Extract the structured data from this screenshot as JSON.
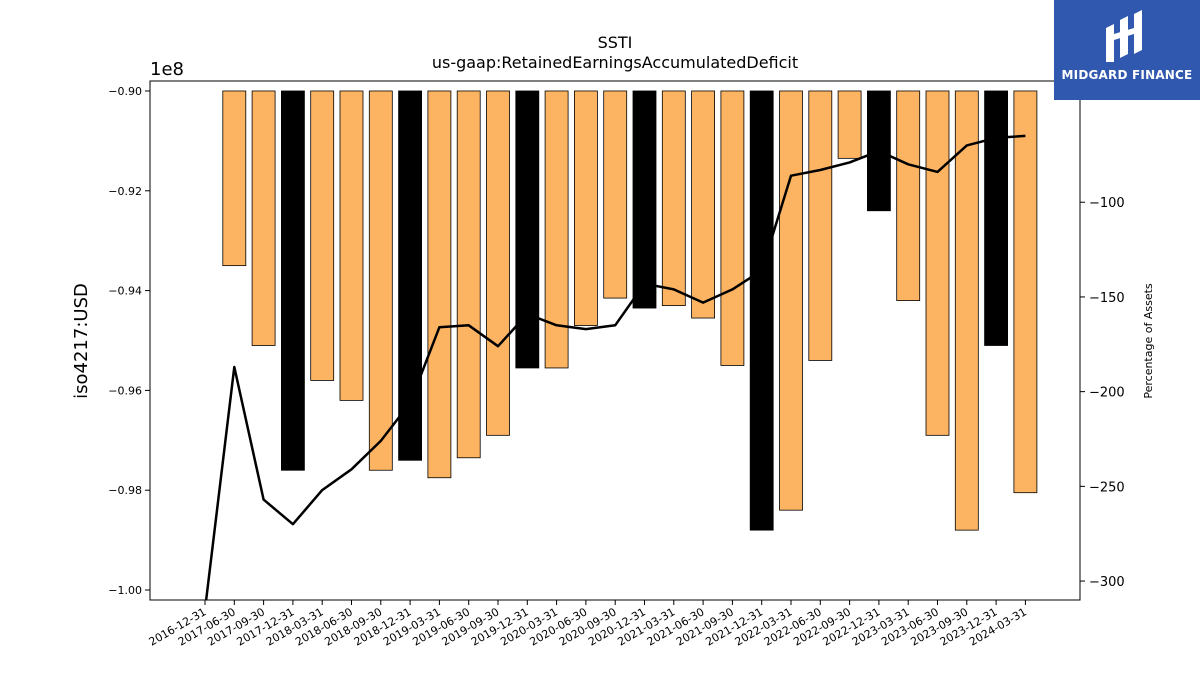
{
  "chart_data": {
    "type": "bar",
    "title": "SSTI",
    "subtitle": "us-gaap:RetainedEarningsAccumulatedDeficit",
    "ylabel": "iso4217:USD",
    "y2label": "Percentage of Assets",
    "y_offset_label": "1e8",
    "ylim": [
      -100200000,
      -89800000
    ],
    "y2lim": [
      -310,
      -36
    ],
    "yticks": [
      "-1.00",
      "-0.98",
      "-0.96",
      "-0.94",
      "-0.92",
      "-0.90"
    ],
    "y2ticks": [
      "-300",
      "-250",
      "-200",
      "-150",
      "-100"
    ],
    "categories": [
      "2016-12-31",
      "2017-06-30",
      "2017-09-30",
      "2017-12-31",
      "2018-03-31",
      "2018-06-30",
      "2018-09-30",
      "2018-12-31",
      "2019-03-31",
      "2019-06-30",
      "2019-09-30",
      "2019-12-31",
      "2020-03-31",
      "2020-06-30",
      "2020-09-30",
      "2020-12-31",
      "2021-03-31",
      "2021-06-30",
      "2021-09-30",
      "2021-12-31",
      "2022-03-31",
      "2022-06-30",
      "2022-09-30",
      "2022-12-31",
      "2023-03-31",
      "2023-06-30",
      "2023-09-30",
      "2023-12-31",
      "2024-03-31"
    ],
    "series": [
      {
        "values": [
          null,
          -93500000,
          -95100000,
          -97600000,
          -95800000,
          -96200000,
          -97600000,
          -97400000,
          -97750000,
          -97350000,
          -96900000,
          -95550000,
          -95550000,
          -94700000,
          -94150000,
          -94350000,
          -94300000,
          -94550000,
          -95500000,
          -98800000,
          -98400000,
          -95400000,
          -91350000,
          -92400000,
          -94200000,
          -96900000,
          -98800000,
          -95100000,
          -98050000
        ],
        "bar_colors": [
          "#fdb462",
          "#fdb462",
          "#fdb462",
          "#000000",
          "#fdb462",
          "#fdb462",
          "#fdb462",
          "#000000",
          "#fdb462",
          "#fdb462",
          "#fdb462",
          "#000000",
          "#fdb462",
          "#fdb462",
          "#fdb462",
          "#000000",
          "#fdb462",
          "#fdb462",
          "#fdb462",
          "#000000",
          "#fdb462",
          "#fdb462",
          "#fdb462",
          "#000000",
          "#fdb462",
          "#fdb462",
          "#fdb462",
          "#000000",
          "#fdb462"
        ]
      },
      {
        "axis": "right",
        "type": "line",
        "color": "#000000",
        "values": [
          -315,
          -187,
          -257,
          -270,
          -252,
          -241,
          -226,
          -206,
          -166,
          -165,
          -176,
          -159,
          -165,
          -167,
          -165,
          -143,
          -146,
          -153,
          -146,
          -136,
          -86,
          -83,
          -79,
          -73,
          -80,
          -84,
          -70,
          -66,
          -65
        ]
      }
    ],
    "grid": false,
    "colors": {
      "bar": "#fdb462",
      "bar_q4": "#000000",
      "line": "#000000"
    }
  },
  "logo": {
    "text": "MIDGARD FINANCE",
    "background": "#2f58ae"
  }
}
